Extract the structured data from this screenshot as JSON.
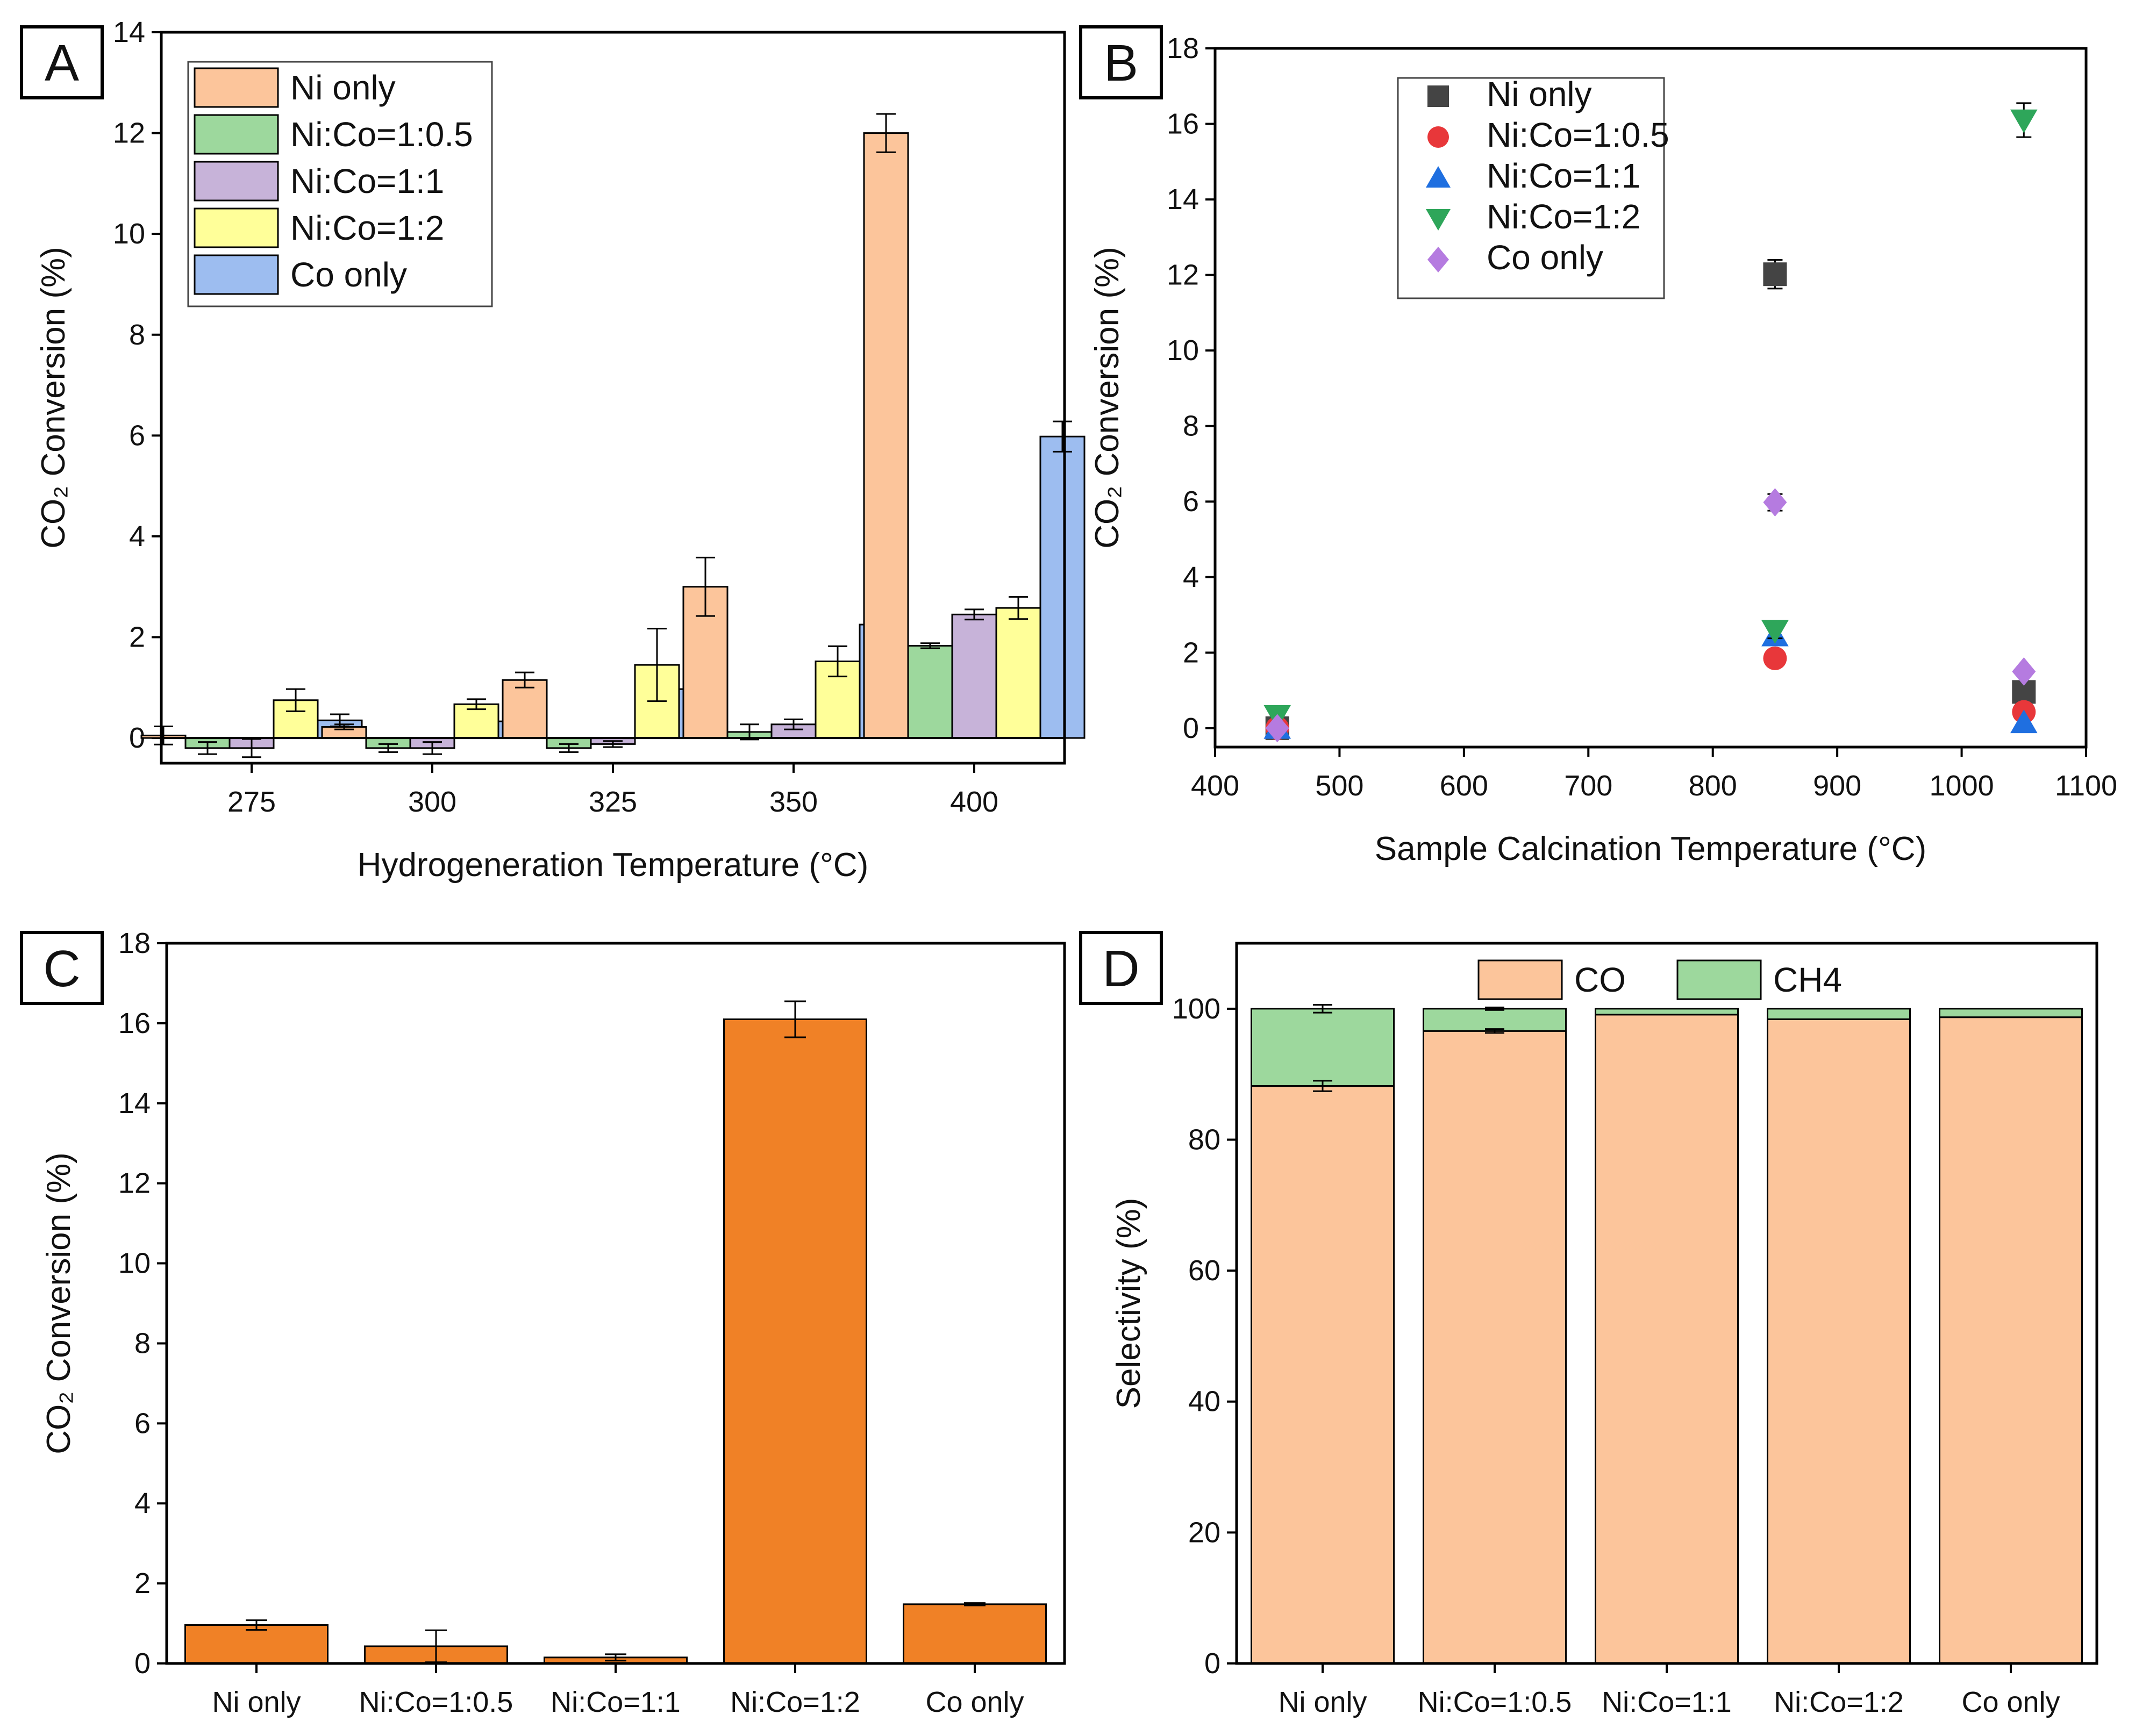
{
  "panels": [
    {
      "letter": "A",
      "chart_data": {
        "type": "bar",
        "xlabel": "Hydrogeneration Temperature (°C)",
        "ylabel": "CO₂ Conversion (%)",
        "ylim": [
          -0.5,
          14
        ],
        "yticks": [
          0,
          2,
          4,
          6,
          8,
          10,
          12,
          14
        ],
        "categories": [
          "275",
          "300",
          "325",
          "350",
          "400"
        ],
        "legend_position": "top-left",
        "series": [
          {
            "name": "Ni only",
            "color": "#fcc59b",
            "values": [
              0.05,
              0.22,
              1.15,
              3.0,
              12.0
            ],
            "errors": [
              0.18,
              0.05,
              0.15,
              0.58,
              0.38
            ]
          },
          {
            "name": "Ni:Co=1:0.5",
            "color": "#9dd89d",
            "values": [
              -0.2,
              -0.2,
              -0.2,
              0.12,
              1.83
            ],
            "errors": [
              0.12,
              0.08,
              0.08,
              0.15,
              0.05
            ]
          },
          {
            "name": "Ni:Co=1:1",
            "color": "#c7b3d9",
            "values": [
              -0.2,
              -0.2,
              -0.12,
              0.27,
              2.45
            ],
            "errors": [
              0.18,
              0.12,
              0.06,
              0.1,
              0.1
            ]
          },
          {
            "name": "Ni:Co=1:2",
            "color": "#ffff99",
            "values": [
              0.75,
              0.67,
              1.45,
              1.52,
              2.58
            ],
            "errors": [
              0.22,
              0.1,
              0.72,
              0.3,
              0.22
            ]
          },
          {
            "name": "Co only",
            "color": "#9dbdf0",
            "values": [
              0.35,
              0.33,
              0.97,
              2.25,
              5.98
            ],
            "errors": [
              0.12,
              0.2,
              0.1,
              0.3,
              0.3
            ]
          }
        ]
      }
    },
    {
      "letter": "B",
      "chart_data": {
        "type": "scatter",
        "xlabel": "Sample Calcination Temperature (°C)",
        "ylabel": "CO₂ Conversion (%)",
        "xlim": [
          400,
          1100
        ],
        "ylim": [
          -0.5,
          18
        ],
        "xticks": [
          400,
          500,
          600,
          700,
          800,
          900,
          1000,
          1100
        ],
        "yticks": [
          0,
          2,
          4,
          6,
          8,
          10,
          12,
          14,
          16,
          18
        ],
        "legend_position": "top-left",
        "series": [
          {
            "name": "Ni only",
            "marker": "square",
            "color": "#444444",
            "x": [
              450,
              850,
              1050
            ],
            "y": [
              0.0,
              12.02,
              0.96
            ],
            "errors": [
              0,
              0.38,
              0
            ]
          },
          {
            "name": "Ni:Co=1:0.5",
            "marker": "circle",
            "color": "#e8373a",
            "x": [
              450,
              850,
              1050
            ],
            "y": [
              0.0,
              1.85,
              0.43
            ],
            "errors": [
              0,
              0,
              0
            ]
          },
          {
            "name": "Ni:Co=1:1",
            "marker": "triangle-up",
            "color": "#1f6fe0",
            "x": [
              450,
              850,
              1050
            ],
            "y": [
              0.0,
              2.45,
              0.15
            ],
            "errors": [
              0,
              0,
              0
            ]
          },
          {
            "name": "Ni:Co=1:2",
            "marker": "triangle-down",
            "color": "#2ea65a",
            "x": [
              450,
              850,
              1050
            ],
            "y": [
              0.33,
              2.58,
              16.1
            ],
            "errors": [
              0,
              0.2,
              0.45
            ]
          },
          {
            "name": "Co only",
            "marker": "diamond",
            "color": "#b57be0",
            "x": [
              450,
              850,
              1050
            ],
            "y": [
              0.0,
              5.98,
              1.5
            ],
            "errors": [
              0,
              0.22,
              0
            ]
          }
        ]
      }
    },
    {
      "letter": "C",
      "chart_data": {
        "type": "bar",
        "xlabel": "",
        "ylabel": "CO₂ Conversion (%)",
        "ylim": [
          0,
          18
        ],
        "yticks": [
          0,
          2,
          4,
          6,
          8,
          10,
          12,
          14,
          16,
          18
        ],
        "color": "#f08126",
        "categories": [
          "Ni only",
          "Ni:Co=1:0.5",
          "Ni:Co=1:1",
          "Ni:Co=1:2",
          "Co only"
        ],
        "values": [
          0.96,
          0.43,
          0.15,
          16.1,
          1.48
        ],
        "errors": [
          0.12,
          0.4,
          0.08,
          0.45,
          0.03
        ]
      }
    },
    {
      "letter": "D",
      "chart_data": {
        "type": "bar",
        "stacked": true,
        "xlabel": "",
        "ylabel": "Selectivity (%)",
        "ylim": [
          0,
          110
        ],
        "yticks": [
          0,
          20,
          40,
          60,
          80,
          100
        ],
        "categories": [
          "Ni only",
          "Ni:Co=1:0.5",
          "Ni:Co=1:1",
          "Ni:Co=1:2",
          "Co only"
        ],
        "legend_position": "top-center",
        "series": [
          {
            "name": "CO",
            "color": "#fcc59b",
            "values": [
              88.2,
              96.6,
              99.1,
              98.4,
              98.7
            ],
            "errors": [
              0.8,
              0.3,
              0,
              0,
              0
            ]
          },
          {
            "name": "CH4",
            "color": "#9dd89d",
            "values": [
              11.8,
              3.4,
              0.9,
              1.6,
              1.3
            ],
            "errors": [
              0.6,
              0.2,
              0,
              0,
              0
            ]
          }
        ]
      }
    }
  ]
}
